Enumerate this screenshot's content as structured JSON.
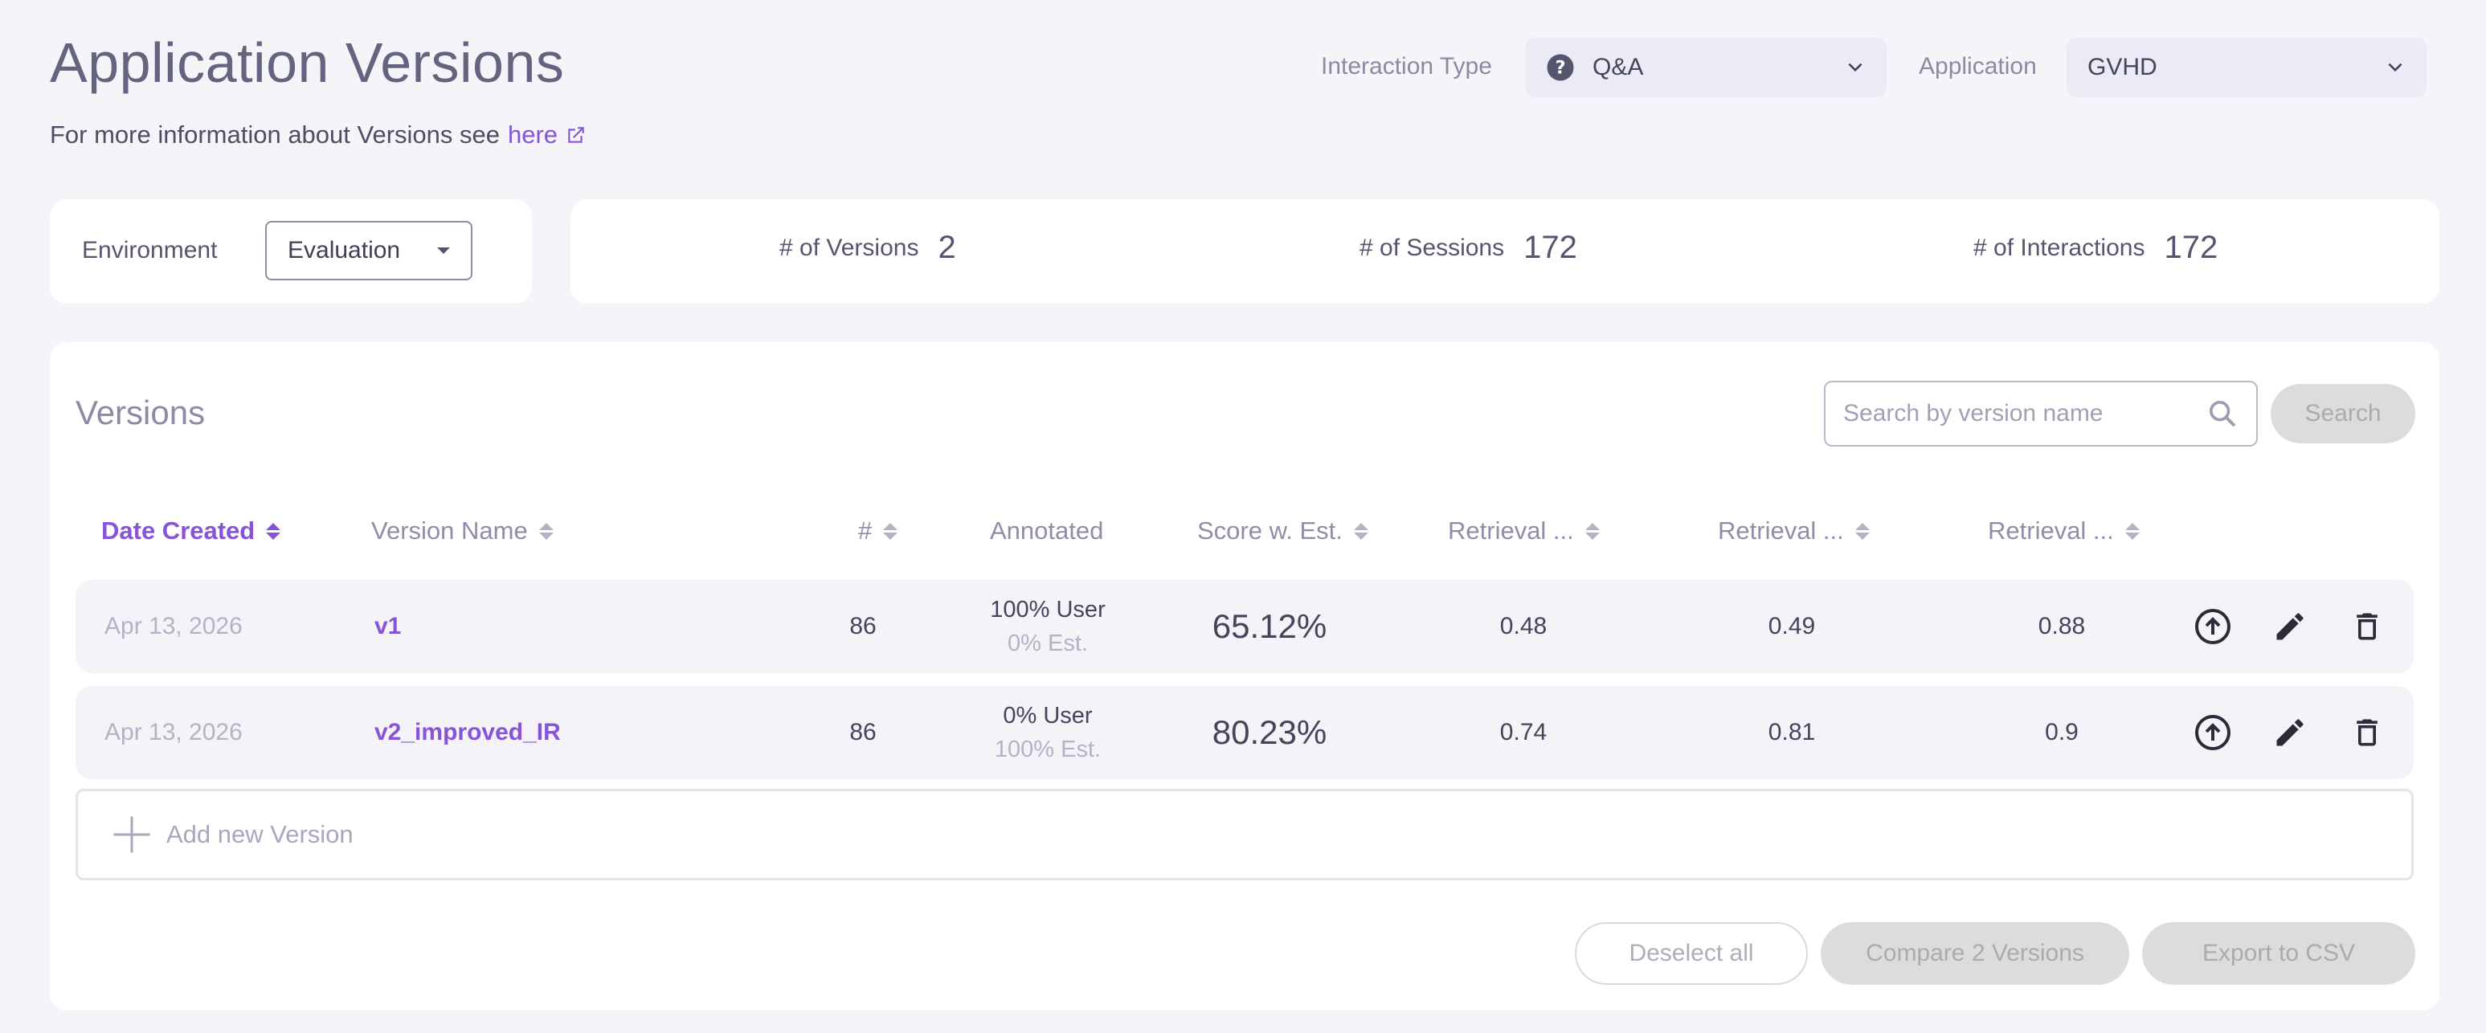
{
  "page": {
    "title": "Application Versions",
    "subtitle_text": "For more information about Versions see",
    "subtitle_link": "here"
  },
  "filters": {
    "interaction_type_label": "Interaction Type",
    "interaction_type_value": "Q&A",
    "application_label": "Application",
    "application_value": "GVHD"
  },
  "environment": {
    "label": "Environment",
    "value": "Evaluation"
  },
  "stats": {
    "versions_label": "# of Versions",
    "versions_value": "2",
    "sessions_label": "# of Sessions",
    "sessions_value": "172",
    "interactions_label": "# of Interactions",
    "interactions_value": "172"
  },
  "versions": {
    "title": "Versions",
    "search_placeholder": "Search by version name",
    "search_button": "Search",
    "columns": [
      "Date Created",
      "Version Name",
      "#",
      "Annotated",
      "Score w. Est.",
      "Retrieval ...",
      "Retrieval ...",
      "Retrieval ..."
    ],
    "rows": [
      {
        "date": "Apr 13, 2026",
        "name": "v1",
        "count": "86",
        "annot_user": "100% User",
        "annot_est": "0% Est.",
        "score": "65.12%",
        "r1": "0.48",
        "r2": "0.49",
        "r3": "0.88"
      },
      {
        "date": "Apr 13, 2026",
        "name": "v2_improved_IR",
        "count": "86",
        "annot_user": "0% User",
        "annot_est": "100% Est.",
        "score": "80.23%",
        "r1": "0.74",
        "r2": "0.81",
        "r3": "0.9"
      }
    ],
    "add_new": "Add new Version"
  },
  "footer": {
    "deselect_all": "Deselect all",
    "compare": "Compare 2 Versions",
    "export": "Export to CSV"
  },
  "colors": {
    "accent": "#8753d8",
    "background": "#f5f5f9",
    "card": "#ffffff",
    "row": "#f3f3f8"
  }
}
